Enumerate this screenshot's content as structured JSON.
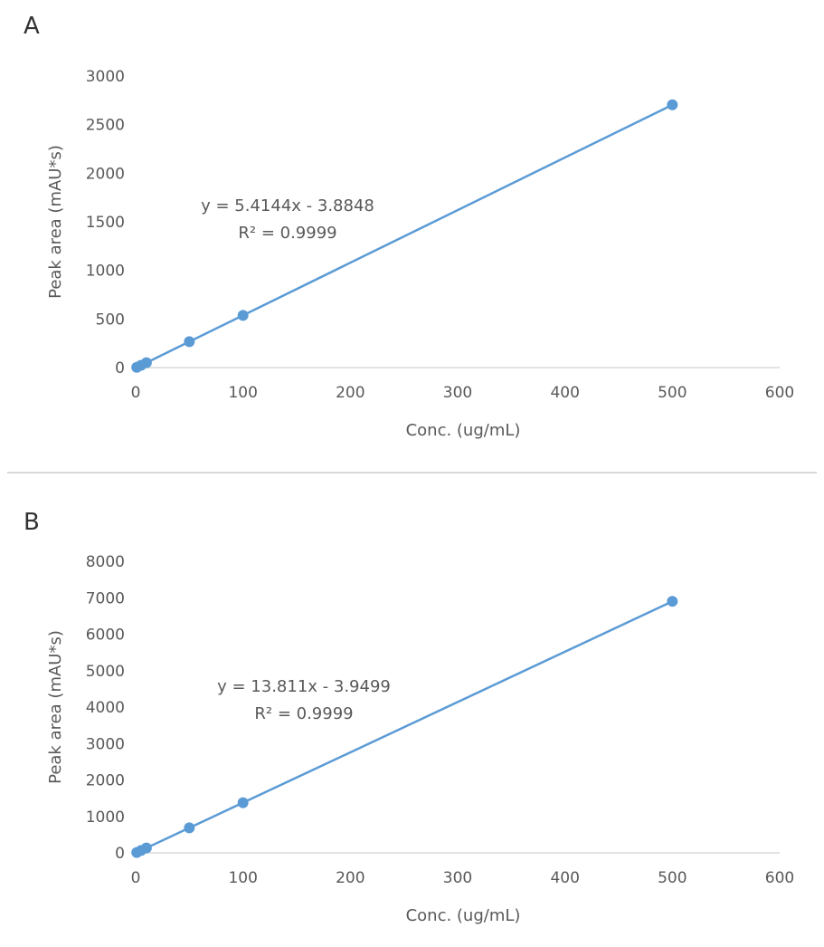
{
  "colors": {
    "series": "#5B9BD5",
    "axis": "#D9D9D9",
    "text": "#595959"
  },
  "chart_data": [
    {
      "type": "scatter",
      "panel_label": "A",
      "xlabel": "Conc. (ug/mL)",
      "ylabel": "Peak area (mAU*s)",
      "xlim": [
        0,
        600
      ],
      "ylim": [
        0,
        3000
      ],
      "xticks": [
        "0",
        "100",
        "200",
        "300",
        "400",
        "500",
        "600"
      ],
      "yticks": [
        "0",
        "500",
        "1000",
        "1500",
        "2000",
        "2500",
        "3000"
      ],
      "series": [
        {
          "x": [
            1,
            5,
            10,
            50,
            100,
            500
          ],
          "y": [
            2,
            23,
            50,
            267,
            537,
            2704
          ]
        }
      ],
      "trendline": {
        "type": "linear",
        "slope": 5.4144,
        "intercept": -3.8848
      },
      "equation": "y = 5.4144x - 3.8848",
      "r_squared": "R² = 0.9999",
      "grid": false
    },
    {
      "type": "scatter",
      "panel_label": "B",
      "xlabel": "Conc. (ug/mL)",
      "ylabel": "Peak area (mAU*s)",
      "xlim": [
        0,
        600
      ],
      "ylim": [
        0,
        8000
      ],
      "xticks": [
        "0",
        "100",
        "200",
        "300",
        "400",
        "500",
        "600"
      ],
      "yticks": [
        "0",
        "1000",
        "2000",
        "3000",
        "4000",
        "5000",
        "6000",
        "7000",
        "8000"
      ],
      "series": [
        {
          "x": [
            1,
            5,
            10,
            50,
            100,
            500
          ],
          "y": [
            10,
            65,
            134,
            687,
            1377,
            6902
          ]
        }
      ],
      "trendline": {
        "type": "linear",
        "slope": 13.811,
        "intercept": -3.9499
      },
      "equation": "y = 13.811x - 3.9499",
      "r_squared": "R² = 0.9999",
      "grid": false
    }
  ]
}
